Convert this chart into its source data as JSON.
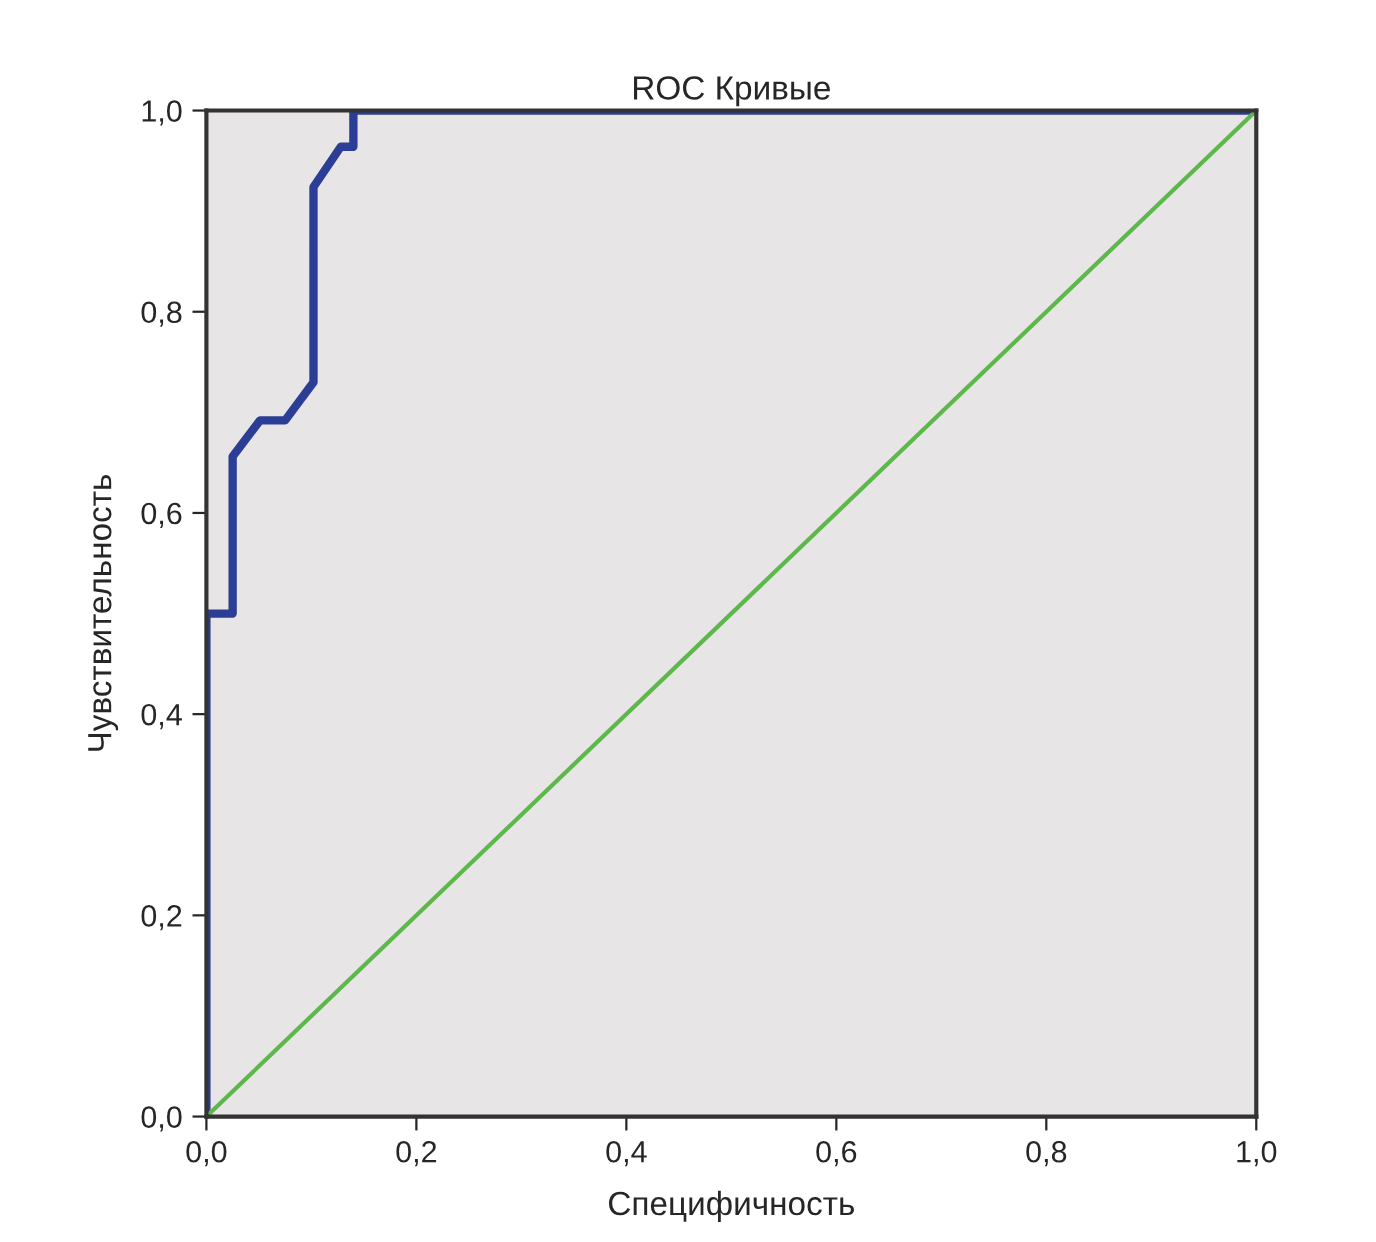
{
  "chart_data": {
    "type": "line",
    "title": "ROC Кривые",
    "xlabel": "Специфичность",
    "ylabel": "Чувствительность",
    "series": [
      {
        "color": "#2b3d94",
        "x": [
          0,
          0,
          0.025,
          0.025,
          0.051,
          0.075,
          0.102,
          0.102,
          0.128,
          0.14,
          0.14,
          1
        ],
        "values": [
          0,
          0.5,
          0.5,
          0.656,
          0.692,
          0.692,
          0.73,
          0.924,
          0.964,
          0.964,
          1,
          1
        ]
      },
      {
        "color": "#5cb84a",
        "x": [
          0,
          1
        ],
        "values": [
          0,
          1
        ]
      }
    ],
    "xlim": [
      0,
      1
    ],
    "ylim": [
      0,
      1
    ],
    "xticks": [
      {
        "value": 0,
        "label": "0,0"
      },
      {
        "value": 0.2,
        "label": "0,2"
      },
      {
        "value": 0.4,
        "label": "0,4"
      },
      {
        "value": 0.6,
        "label": "0,6"
      },
      {
        "value": 0.8,
        "label": "0,8"
      },
      {
        "value": 1,
        "label": "1,0"
      }
    ],
    "yticks": [
      {
        "value": 0,
        "label": "0,0"
      },
      {
        "value": 0.2,
        "label": "0,2"
      },
      {
        "value": 0.4,
        "label": "0,4"
      },
      {
        "value": 0.6,
        "label": "0,6"
      },
      {
        "value": 0.8,
        "label": "0,8"
      },
      {
        "value": 1,
        "label": "1,0"
      }
    ],
    "grid": false,
    "legend": false,
    "line_style": "solid",
    "marker": "none"
  }
}
